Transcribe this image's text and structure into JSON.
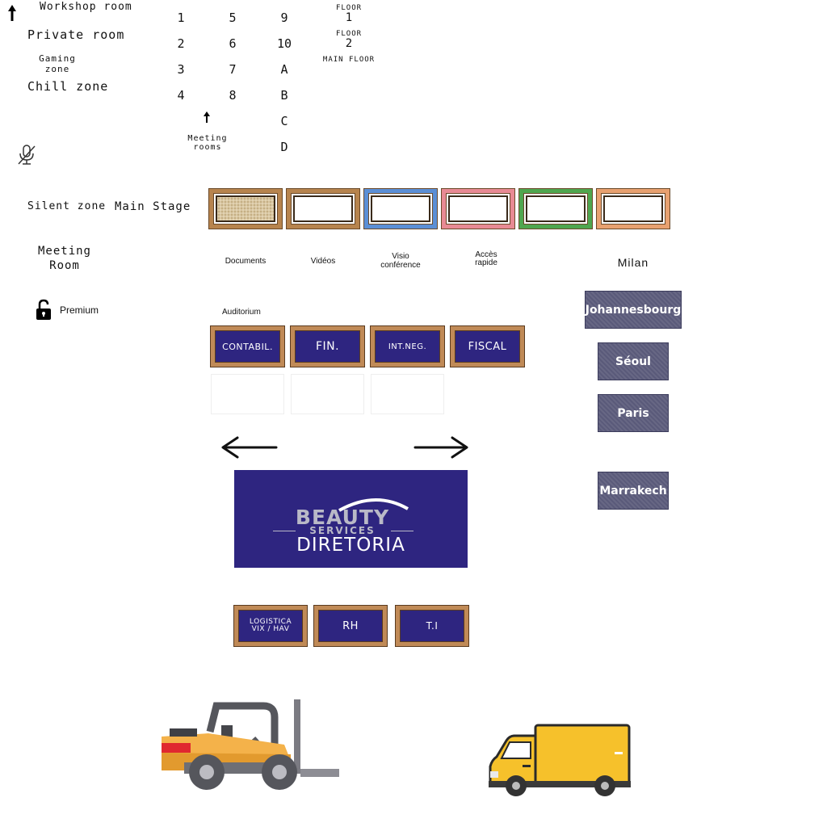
{
  "zones": {
    "workshop": "Workshop room",
    "private": "Private room",
    "gaming": "Gaming zone",
    "chill": "Chill zone",
    "silent": "Silent zone",
    "main_stage": "Main Stage",
    "meeting_room": "Meeting Room",
    "premium": "Premium"
  },
  "rooms": {
    "numbers": [
      "1",
      "2",
      "3",
      "4",
      "5",
      "6",
      "7",
      "8",
      "9",
      "10",
      "A",
      "B",
      "C",
      "D"
    ],
    "meeting_rooms_label": "Meeting rooms"
  },
  "floors": {
    "floor1_label": "FLOOR",
    "floor1_num": "1",
    "floor2_label": "FLOOR",
    "floor2_num": "2",
    "main_floor": "MAIN FLOOR"
  },
  "media": {
    "documents": "Documents",
    "videos": "Vidéos",
    "visio": "Visio conférence",
    "acces": "Accès rapide",
    "auditorium": "Auditorium"
  },
  "departments": {
    "contabil": "CONTABIL.",
    "fin": "FIN.",
    "intneg": "INT.NEG.",
    "fiscal": "FISCAL",
    "logistica": "LOGISTICA VIX / HAV",
    "rh": "RH",
    "ti": "T.I"
  },
  "banner": {
    "brand": "BEAUTY",
    "services": "SERVICES",
    "diretoria": "DIRETORIA"
  },
  "cities": {
    "milan": "Milan",
    "johannesbourg": "Johannesbourg",
    "seoul": "Séoul",
    "paris": "Paris",
    "marrakech": "Marrakech"
  },
  "icons": {
    "arrow_up": "arrow-up-icon",
    "mic_off": "microphone-off-icon",
    "lock": "lock-open-icon",
    "arrow_left": "arrow-left-icon",
    "arrow_right": "arrow-right-icon",
    "forklift": "forklift-icon",
    "truck": "truck-icon"
  },
  "colors": {
    "frame_brown": "#b7844e",
    "frame_blue": "#5b8fd6",
    "frame_pink": "#e88a94",
    "frame_green": "#4fa64f",
    "frame_orange": "#e8a170",
    "dept_navy": "#2e2580",
    "city_gray": "#5a5a7a"
  }
}
